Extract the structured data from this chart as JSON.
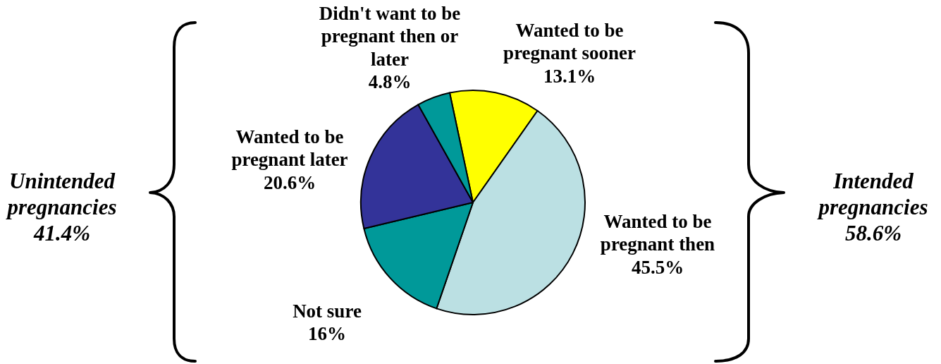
{
  "chart_data": {
    "type": "pie",
    "categories": [
      "Wanted to be pregnant sooner",
      "Wanted to be pregnant then",
      "Not sure",
      "Wanted to be pregnant later",
      "Didn't want to be pregnant then or later"
    ],
    "values": [
      13.1,
      45.5,
      16,
      20.6,
      4.8
    ],
    "value_labels": [
      "13.1%",
      "45.5%",
      "16%",
      "20.6%",
      "4.8%"
    ],
    "colors": [
      "#ffff00",
      "#bbe0e3",
      "#009999",
      "#333399",
      "#009999"
    ],
    "annotations": [
      "Unintended pregnancies 41.4%",
      "Intended pregnancies 58.6%"
    ]
  }
}
